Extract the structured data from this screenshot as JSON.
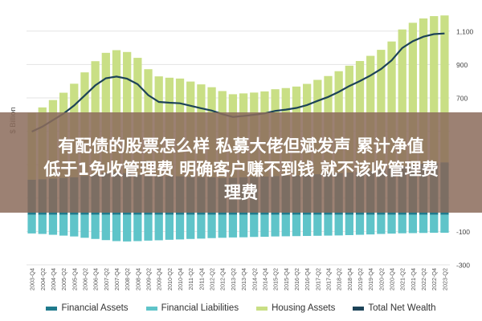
{
  "headline": {
    "line1": "有配债的股票怎么样 私募大佬但斌发声 累计净值",
    "line2": "低于1免收管理费 明确客户赚不到钱 就不该收管理费",
    "line3": "理费"
  },
  "colors": {
    "financial_assets": "#1f7a8c",
    "financial_liabilities": "#5fc4c9",
    "housing_assets": "#c9df85",
    "total_net_wealth": "#1d4358",
    "overlay": "#8c6c5c",
    "grid": "#e3e3e3"
  },
  "chart_data": {
    "type": "bar",
    "x": [
      "2003-Q4",
      "2004-Q2",
      "2004-Q4",
      "2005-Q2",
      "2005-Q4",
      "2006-Q2",
      "2006-Q4",
      "2007-Q2",
      "2007-Q4",
      "2008-Q2",
      "2008-Q4",
      "2009-Q2",
      "2009-Q4",
      "2010-Q2",
      "2010-Q4",
      "2011-Q2",
      "2011-Q4",
      "2012-Q2",
      "2012-Q4",
      "2013-Q2",
      "2013-Q4",
      "2014-Q2",
      "2014-Q4",
      "2015-Q2",
      "2015-Q4",
      "2016-Q2",
      "2016-Q4",
      "2017-Q2",
      "2017-Q4",
      "2018-Q2",
      "2018-Q4",
      "2019-Q2",
      "2019-Q4",
      "2020-Q2",
      "2020-Q4",
      "2021-Q2",
      "2021-Q4",
      "2022-Q2",
      "2022-Q4",
      "2023-Q2"
    ],
    "ylim": [
      -300,
      1200
    ],
    "yticks": [
      -300,
      -100,
      100,
      300,
      500,
      700,
      900,
      1100
    ],
    "ytick_labels": [
      "-300",
      "-100",
      "",
      "",
      "",
      "700",
      "900",
      "1,100"
    ],
    "ylabel": "$ Billion",
    "legend_position": "bottom",
    "series": [
      {
        "name": "Financial Assets",
        "kind": "bar",
        "values": [
          210,
          213,
          217,
          221,
          225,
          233,
          240,
          250,
          256,
          250,
          240,
          232,
          229,
          231,
          231,
          228,
          226,
          224,
          221,
          222,
          225,
          227,
          229,
          232,
          234,
          236,
          239,
          243,
          246,
          250,
          253,
          256,
          262,
          268,
          278,
          290,
          300,
          306,
          310,
          314
        ]
      },
      {
        "name": "Financial Liabilities",
        "kind": "bar",
        "values": [
          -112,
          -115,
          -120,
          -125,
          -130,
          -138,
          -145,
          -152,
          -158,
          -160,
          -158,
          -155,
          -153,
          -150,
          -148,
          -145,
          -143,
          -140,
          -138,
          -136,
          -135,
          -133,
          -132,
          -130,
          -129,
          -128,
          -127,
          -126,
          -125,
          -124,
          -122,
          -120,
          -118,
          -115,
          -113,
          -111,
          -110,
          -109,
          -108,
          -108
        ]
      },
      {
        "name": "Housing Assets",
        "kind": "bar",
        "values": [
          400,
          430,
          470,
          510,
          560,
          620,
          680,
          720,
          730,
          725,
          700,
          640,
          600,
          590,
          585,
          570,
          555,
          540,
          520,
          500,
          502,
          505,
          510,
          520,
          525,
          532,
          545,
          565,
          585,
          610,
          640,
          665,
          690,
          720,
          760,
          820,
          850,
          870,
          880,
          880
        ]
      },
      {
        "name": "Total Net Wealth",
        "kind": "line",
        "values": [
          498,
          528,
          567,
          606,
          655,
          715,
          775,
          818,
          828,
          815,
          782,
          717,
          676,
          671,
          668,
          653,
          638,
          624,
          603,
          586,
          592,
          599,
          607,
          622,
          630,
          640,
          657,
          682,
          706,
          736,
          771,
          801,
          834,
          873,
          925,
          999,
          1040,
          1067,
          1082,
          1086
        ]
      }
    ]
  }
}
